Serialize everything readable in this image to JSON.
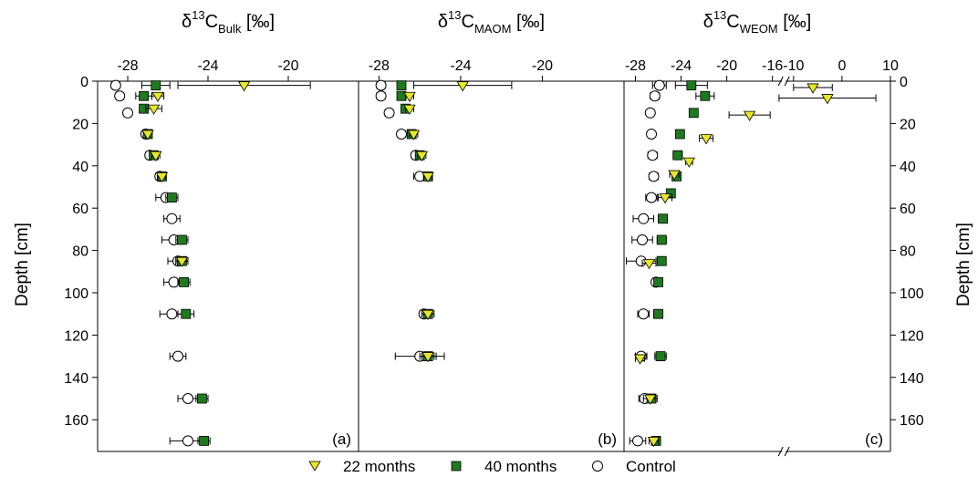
{
  "ylabel": "Depth [cm]",
  "y_ticks": [
    0,
    20,
    40,
    60,
    80,
    100,
    120,
    140,
    160
  ],
  "legend": [
    {
      "name": "22 months",
      "marker": "triangle-down",
      "color": "#e6e62a"
    },
    {
      "name": "40 months",
      "marker": "square",
      "color": "#1f7a1f"
    },
    {
      "name": "Control",
      "marker": "circle-open",
      "color": "#ffffff"
    }
  ],
  "chart_data": [
    {
      "type": "scatter",
      "panel_label": "(a)",
      "title": {
        "main": "δ",
        "sup": "13",
        "c": "C",
        "sub": "Bulk",
        "unit": " [‰]"
      },
      "xlim": [
        -29.5,
        -16.5
      ],
      "x_ticks": [
        -28,
        -24,
        -20
      ],
      "ylim": [
        0,
        175
      ],
      "y_reversed": true,
      "series": [
        {
          "name": "22 months",
          "points": [
            {
              "depth": 2,
              "x": -22.2,
              "err": 3.3
            },
            {
              "depth": 7,
              "x": -26.5,
              "err": 0.3
            },
            {
              "depth": 13,
              "x": -26.7,
              "err": 0.4
            },
            {
              "depth": 25,
              "x": -27.0,
              "err": 0.1
            },
            {
              "depth": 35,
              "x": -26.6,
              "err": 0.2
            },
            {
              "depth": 45,
              "x": -26.3,
              "err": 0.2
            },
            {
              "depth": 85,
              "x": -25.3,
              "err": 0.3
            }
          ]
        },
        {
          "name": "40 months",
          "points": [
            {
              "depth": 2,
              "x": -26.6,
              "err": 0.7
            },
            {
              "depth": 7,
              "x": -27.2,
              "err": 0.4
            },
            {
              "depth": 13,
              "x": -27.2,
              "err": 0.2
            },
            {
              "depth": 25,
              "x": -27.0,
              "err": 0.1
            },
            {
              "depth": 35,
              "x": -26.7,
              "err": 0.2
            },
            {
              "depth": 45,
              "x": -26.3,
              "err": 0.2
            },
            {
              "depth": 55,
              "x": -25.8,
              "err": 0.3
            },
            {
              "depth": 75,
              "x": -25.3,
              "err": 0.3
            },
            {
              "depth": 85,
              "x": -25.3,
              "err": 0.3
            },
            {
              "depth": 95,
              "x": -25.2,
              "err": 0.3
            },
            {
              "depth": 110,
              "x": -25.1,
              "err": 0.4
            },
            {
              "depth": 150,
              "x": -24.3,
              "err": 0.3
            },
            {
              "depth": 170,
              "x": -24.2,
              "err": 0.3
            }
          ]
        },
        {
          "name": "Control",
          "points": [
            {
              "depth": 2,
              "x": -28.6,
              "err": 0.2
            },
            {
              "depth": 7,
              "x": -28.4,
              "err": 0.2
            },
            {
              "depth": 15,
              "x": -28.0,
              "err": 0.2
            },
            {
              "depth": 25,
              "x": -27.1,
              "err": 0.1
            },
            {
              "depth": 35,
              "x": -26.9,
              "err": 0.2
            },
            {
              "depth": 45,
              "x": -26.4,
              "err": 0.2
            },
            {
              "depth": 55,
              "x": -26.1,
              "err": 0.5
            },
            {
              "depth": 65,
              "x": -25.8,
              "err": 0.4
            },
            {
              "depth": 75,
              "x": -25.7,
              "err": 0.6
            },
            {
              "depth": 85,
              "x": -25.5,
              "err": 0.5
            },
            {
              "depth": 95,
              "x": -25.7,
              "err": 0.5
            },
            {
              "depth": 110,
              "x": -25.8,
              "err": 0.6
            },
            {
              "depth": 130,
              "x": -25.5,
              "err": 0.4
            },
            {
              "depth": 150,
              "x": -25.0,
              "err": 0.5
            },
            {
              "depth": 170,
              "x": -25.0,
              "err": 0.9
            }
          ]
        }
      ]
    },
    {
      "type": "scatter",
      "panel_label": "(b)",
      "title": {
        "main": "δ",
        "sup": "13",
        "c": "C",
        "sub": "MAOM",
        "unit": " [‰]"
      },
      "xlim": [
        -29.0,
        -16.0
      ],
      "x_ticks": [
        -28,
        -24,
        -20
      ],
      "ylim": [
        0,
        175
      ],
      "y_reversed": true,
      "series": [
        {
          "name": "22 months",
          "points": [
            {
              "depth": 2,
              "x": -23.9,
              "err": 2.4
            },
            {
              "depth": 7,
              "x": -26.5,
              "err": 0.2
            },
            {
              "depth": 13,
              "x": -26.5,
              "err": 0.2
            },
            {
              "depth": 25,
              "x": -26.3,
              "err": 0.2
            },
            {
              "depth": 35,
              "x": -25.9,
              "err": 0.2
            },
            {
              "depth": 45,
              "x": -25.6,
              "err": 0.2
            },
            {
              "depth": 110,
              "x": -25.6,
              "err": 0.3
            },
            {
              "depth": 130,
              "x": -25.6,
              "err": 0.4
            }
          ]
        },
        {
          "name": "40 months",
          "points": [
            {
              "depth": 2,
              "x": -26.9,
              "err": 0.2
            },
            {
              "depth": 7,
              "x": -26.9,
              "err": 0.2
            },
            {
              "depth": 13,
              "x": -26.7,
              "err": 0.2
            },
            {
              "depth": 25,
              "x": -26.4,
              "err": 0.2
            },
            {
              "depth": 35,
              "x": -26.0,
              "err": 0.1
            },
            {
              "depth": 45,
              "x": -25.6,
              "err": 0.1
            },
            {
              "depth": 110,
              "x": -25.6,
              "err": 0.2
            },
            {
              "depth": 130,
              "x": -25.6,
              "err": 0.3
            }
          ]
        },
        {
          "name": "Control",
          "points": [
            {
              "depth": 2,
              "x": -27.9,
              "err": 0.2
            },
            {
              "depth": 7,
              "x": -27.9,
              "err": 0.2
            },
            {
              "depth": 15,
              "x": -27.5,
              "err": 0.2
            },
            {
              "depth": 25,
              "x": -26.9,
              "err": 0.2
            },
            {
              "depth": 35,
              "x": -26.2,
              "err": 0.2
            },
            {
              "depth": 45,
              "x": -26.0,
              "err": 0.3
            },
            {
              "depth": 110,
              "x": -25.8,
              "err": 0.2
            },
            {
              "depth": 130,
              "x": -26.0,
              "err": 1.2
            }
          ]
        }
      ]
    },
    {
      "type": "scatter",
      "panel_label": "(c)",
      "title": {
        "main": "δ",
        "sup": "13",
        "c": "C",
        "sub": "WEOM",
        "unit": " [‰]"
      },
      "x_break": true,
      "x_segments": [
        {
          "xlim": [
            -29,
            -15
          ],
          "ticks": [
            -28,
            -24,
            -20,
            -16
          ],
          "width_share": 0.6
        },
        {
          "xlim": [
            -12,
            10
          ],
          "ticks": [
            -10,
            0,
            10
          ],
          "width_share": 0.4
        }
      ],
      "ylim": [
        0,
        175
      ],
      "y_reversed": true,
      "series": [
        {
          "name": "22 months",
          "points": [
            {
              "depth": 3,
              "x": -6.0,
              "err": 4.0
            },
            {
              "depth": 8,
              "x": -3.0,
              "err": 10.0
            },
            {
              "depth": 16,
              "x": -18.0,
              "err": 1.8
            },
            {
              "depth": 27,
              "x": -21.8,
              "err": 0.6
            },
            {
              "depth": 38,
              "x": -23.3,
              "err": 0.3
            },
            {
              "depth": 44,
              "x": -24.6,
              "err": 0.4
            },
            {
              "depth": 55,
              "x": -25.4,
              "err": 0.6
            },
            {
              "depth": 86,
              "x": -26.8,
              "err": 0.6
            },
            {
              "depth": 131,
              "x": -27.6,
              "err": 0.4
            },
            {
              "depth": 150,
              "x": -26.7,
              "err": 0.6
            },
            {
              "depth": 170,
              "x": -26.4,
              "err": 0.4
            }
          ]
        },
        {
          "name": "40 months",
          "points": [
            {
              "depth": 2,
              "x": -23.1,
              "err": 1.4
            },
            {
              "depth": 7,
              "x": -21.9,
              "err": 0.8
            },
            {
              "depth": 15,
              "x": -22.9,
              "err": 0.3
            },
            {
              "depth": 25,
              "x": -24.1,
              "err": 0.2
            },
            {
              "depth": 35,
              "x": -24.3,
              "err": 0.4
            },
            {
              "depth": 45,
              "x": -24.4,
              "err": 0.3
            },
            {
              "depth": 53,
              "x": -24.9,
              "err": 0.3
            },
            {
              "depth": 65,
              "x": -25.6,
              "err": 0.4
            },
            {
              "depth": 75,
              "x": -25.7,
              "err": 0.4
            },
            {
              "depth": 85,
              "x": -25.7,
              "err": 0.3
            },
            {
              "depth": 95,
              "x": -26.0,
              "err": 0.3
            },
            {
              "depth": 110,
              "x": -26.0,
              "err": 0.4
            },
            {
              "depth": 130,
              "x": -25.8,
              "err": 0.5
            },
            {
              "depth": 150,
              "x": -26.6,
              "err": 0.3
            },
            {
              "depth": 170,
              "x": -26.2,
              "err": 0.4
            }
          ]
        },
        {
          "name": "Control",
          "points": [
            {
              "depth": 2,
              "x": -25.9,
              "err": 0.6
            },
            {
              "depth": 7,
              "x": -26.3,
              "err": 0.4
            },
            {
              "depth": 15,
              "x": -26.7,
              "err": 0.2
            },
            {
              "depth": 25,
              "x": -26.6,
              "err": 0.3
            },
            {
              "depth": 35,
              "x": -26.5,
              "err": 0.4
            },
            {
              "depth": 45,
              "x": -26.4,
              "err": 0.4
            },
            {
              "depth": 55,
              "x": -26.6,
              "err": 0.5
            },
            {
              "depth": 65,
              "x": -27.3,
              "err": 0.9
            },
            {
              "depth": 75,
              "x": -27.4,
              "err": 0.9
            },
            {
              "depth": 85,
              "x": -27.5,
              "err": 1.3
            },
            {
              "depth": 95,
              "x": -26.2,
              "err": 0.3
            },
            {
              "depth": 110,
              "x": -27.3,
              "err": 0.5
            },
            {
              "depth": 130,
              "x": -27.5,
              "err": 0.5
            },
            {
              "depth": 150,
              "x": -27.2,
              "err": 0.5
            },
            {
              "depth": 170,
              "x": -27.8,
              "err": 0.7
            }
          ]
        }
      ]
    }
  ]
}
